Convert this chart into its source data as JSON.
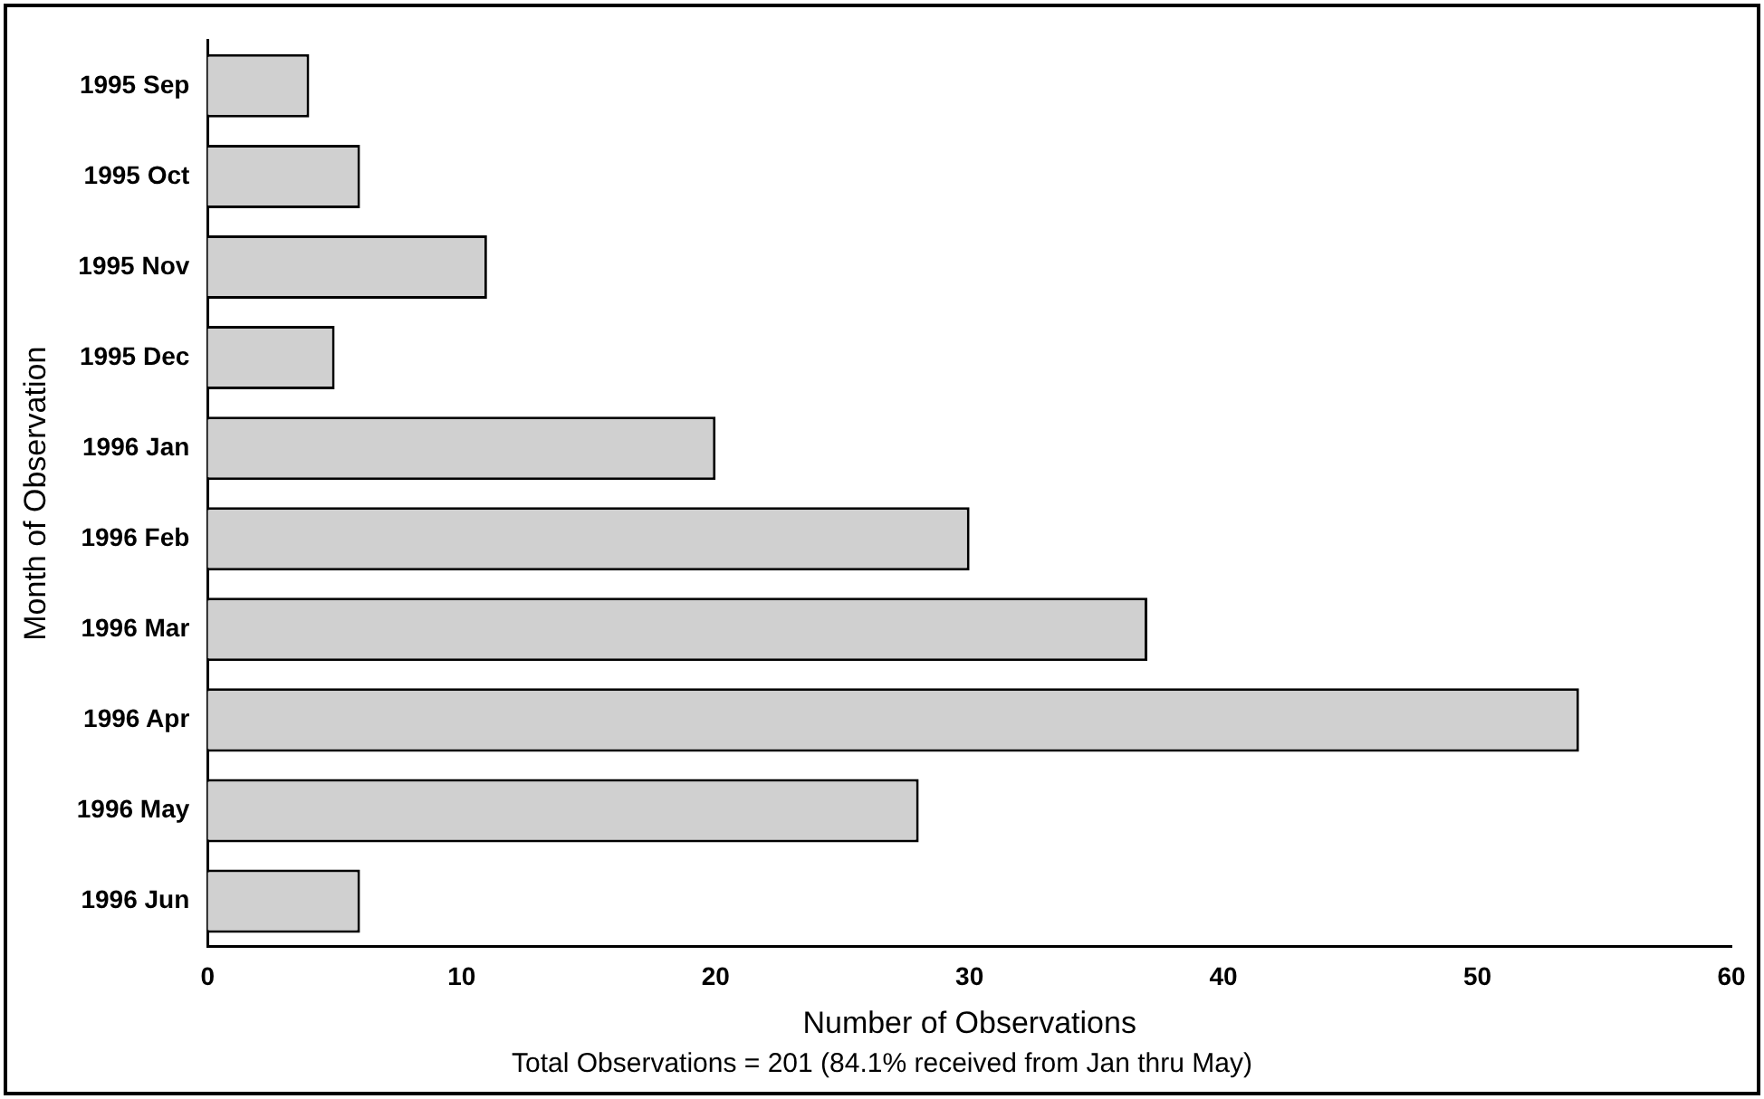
{
  "chart_data": {
    "type": "bar",
    "orientation": "horizontal",
    "xlabel": "Number of Observations",
    "ylabel": "Month of Observation",
    "categories": [
      "1995 Sep",
      "1995 Oct",
      "1995 Nov",
      "1995 Dec",
      "1996 Jan",
      "1996 Feb",
      "1996 Mar",
      "1996 Apr",
      "1996 May",
      "1996 Jun"
    ],
    "values": [
      4,
      6,
      11,
      5,
      20,
      30,
      37,
      54,
      28,
      6
    ],
    "color": "#d0d0d0",
    "xlim": [
      0,
      60
    ],
    "xticks": [
      0,
      10,
      20,
      30,
      40,
      50,
      60
    ],
    "grid": false,
    "legend": false,
    "annotations": [
      "Total Observations = 201 (84.1% received from Jan thru May)"
    ]
  }
}
